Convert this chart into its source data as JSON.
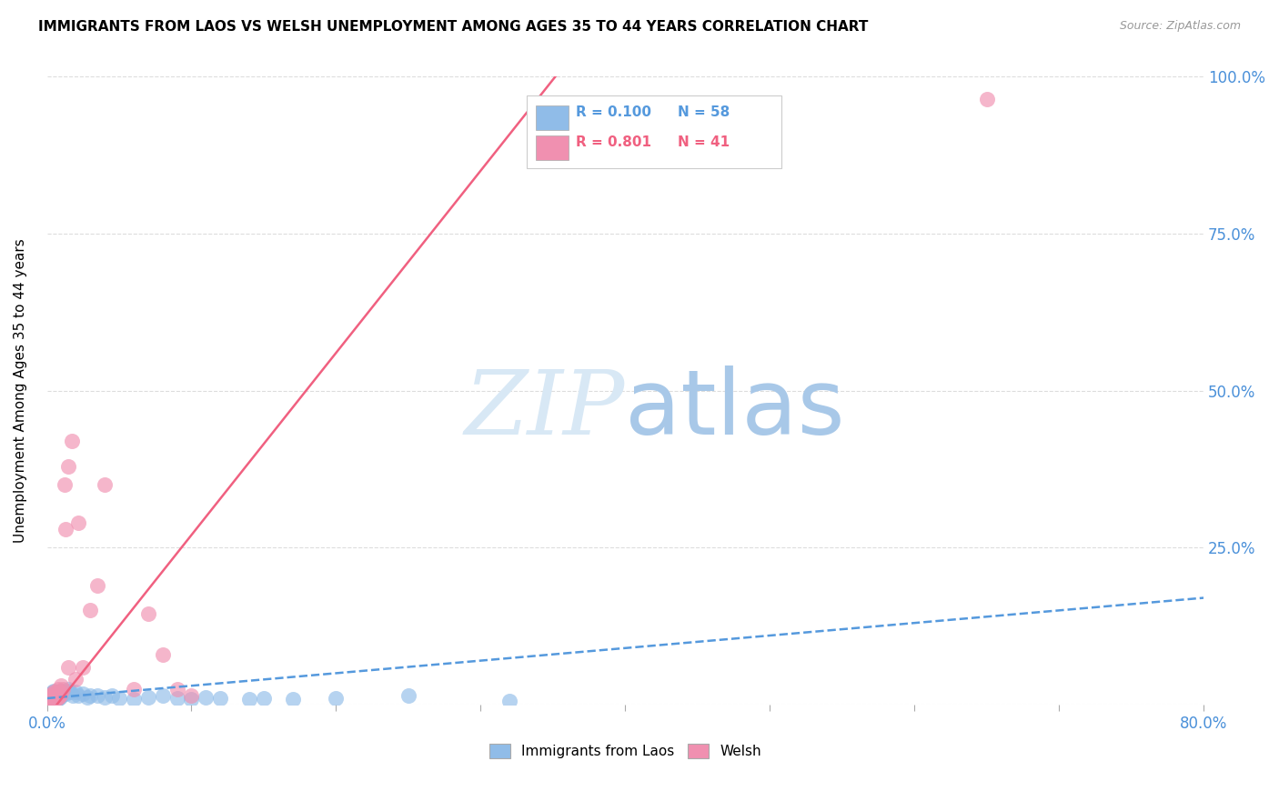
{
  "title": "IMMIGRANTS FROM LAOS VS WELSH UNEMPLOYMENT AMONG AGES 35 TO 44 YEARS CORRELATION CHART",
  "source": "Source: ZipAtlas.com",
  "ylabel": "Unemployment Among Ages 35 to 44 years",
  "xlim": [
    0.0,
    0.8
  ],
  "ylim": [
    0.0,
    1.0
  ],
  "xtick_positions": [
    0.0,
    0.1,
    0.2,
    0.3,
    0.4,
    0.5,
    0.6,
    0.7,
    0.8
  ],
  "ytick_positions": [
    0.0,
    0.25,
    0.5,
    0.75,
    1.0
  ],
  "ytick_labels_right": [
    "",
    "25.0%",
    "50.0%",
    "75.0%",
    "100.0%"
  ],
  "legend_r1": "R = 0.100",
  "legend_n1": "N = 58",
  "legend_r2": "R = 0.801",
  "legend_n2": "N = 41",
  "blue_scatter_color": "#90bce8",
  "pink_scatter_color": "#f090b0",
  "blue_line_color": "#5599dd",
  "pink_line_color": "#f06080",
  "watermark_zip": "#d8e8f5",
  "watermark_atlas": "#a8c8e8",
  "blue_scatter_x": [
    0.001,
    0.001,
    0.002,
    0.002,
    0.002,
    0.003,
    0.003,
    0.003,
    0.003,
    0.004,
    0.004,
    0.004,
    0.004,
    0.005,
    0.005,
    0.005,
    0.005,
    0.006,
    0.006,
    0.006,
    0.007,
    0.007,
    0.007,
    0.008,
    0.008,
    0.009,
    0.009,
    0.01,
    0.01,
    0.011,
    0.012,
    0.013,
    0.014,
    0.015,
    0.016,
    0.018,
    0.02,
    0.022,
    0.025,
    0.028,
    0.03,
    0.035,
    0.04,
    0.045,
    0.05,
    0.06,
    0.07,
    0.08,
    0.09,
    0.1,
    0.11,
    0.12,
    0.14,
    0.15,
    0.17,
    0.2,
    0.25,
    0.32
  ],
  "blue_scatter_y": [
    0.002,
    0.005,
    0.003,
    0.006,
    0.01,
    0.004,
    0.007,
    0.012,
    0.018,
    0.003,
    0.008,
    0.014,
    0.02,
    0.005,
    0.01,
    0.016,
    0.022,
    0.006,
    0.012,
    0.018,
    0.008,
    0.013,
    0.02,
    0.01,
    0.015,
    0.012,
    0.018,
    0.015,
    0.022,
    0.018,
    0.02,
    0.018,
    0.022,
    0.025,
    0.02,
    0.015,
    0.02,
    0.015,
    0.018,
    0.012,
    0.015,
    0.014,
    0.012,
    0.015,
    0.01,
    0.008,
    0.012,
    0.015,
    0.01,
    0.008,
    0.012,
    0.01,
    0.008,
    0.01,
    0.008,
    0.01,
    0.015,
    0.005
  ],
  "pink_scatter_x": [
    0.001,
    0.001,
    0.002,
    0.002,
    0.003,
    0.003,
    0.003,
    0.004,
    0.004,
    0.004,
    0.005,
    0.005,
    0.005,
    0.006,
    0.006,
    0.007,
    0.007,
    0.008,
    0.008,
    0.008,
    0.009,
    0.01,
    0.01,
    0.011,
    0.012,
    0.013,
    0.015,
    0.015,
    0.017,
    0.02,
    0.022,
    0.025,
    0.03,
    0.035,
    0.04,
    0.06,
    0.07,
    0.08,
    0.09,
    0.1,
    0.65
  ],
  "pink_scatter_y": [
    0.003,
    0.008,
    0.005,
    0.012,
    0.006,
    0.01,
    0.015,
    0.004,
    0.012,
    0.018,
    0.008,
    0.014,
    0.02,
    0.01,
    0.016,
    0.01,
    0.018,
    0.012,
    0.02,
    0.025,
    0.015,
    0.02,
    0.03,
    0.025,
    0.35,
    0.28,
    0.38,
    0.06,
    0.42,
    0.04,
    0.29,
    0.06,
    0.15,
    0.19,
    0.35,
    0.025,
    0.145,
    0.08,
    0.025,
    0.015,
    0.965
  ],
  "blue_line_x": [
    0.0,
    0.8
  ],
  "blue_line_y": [
    0.01,
    0.17
  ],
  "pink_line_x": [
    0.0,
    0.355
  ],
  "pink_line_y": [
    -0.02,
    1.01
  ]
}
